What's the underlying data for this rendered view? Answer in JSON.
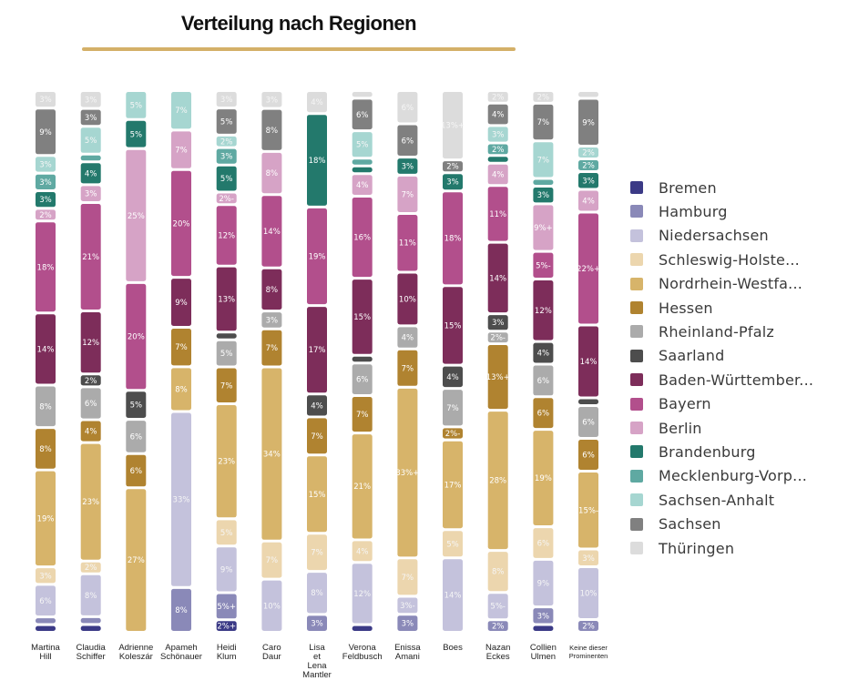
{
  "chart_data": {
    "type": "bar",
    "stacked": true,
    "orientation": "vertical",
    "normalized": true,
    "title": "Verteilung nach Regionen",
    "xlabel": "",
    "ylabel": "",
    "categories": [
      [
        "Martina",
        "Hill"
      ],
      [
        "Claudia",
        "Schiffer"
      ],
      [
        "Adrienne",
        "Koleszár"
      ],
      [
        "Apameh",
        "Schönauer"
      ],
      [
        "Heidi",
        "Klum"
      ],
      [
        "Caro",
        "Daur"
      ],
      [
        "Lisa",
        "et",
        "Lena",
        "Mantler"
      ],
      [
        "Verona",
        "Feldbusch"
      ],
      [
        "Enissa",
        "Amani"
      ],
      [
        "Boes"
      ],
      [
        "Nazan",
        "Eckes"
      ],
      [
        "Collien",
        "Ulmen"
      ],
      [
        "Keine dieser",
        "Prominenten"
      ]
    ],
    "legend_position": "right",
    "grid": false,
    "series": [
      {
        "name": "Bremen",
        "color": "#3b3a86",
        "values": [
          1,
          1,
          0,
          0,
          2,
          0,
          0,
          1,
          0,
          0,
          0,
          1,
          0
        ],
        "labels": [
          "1%",
          "1%",
          "",
          "",
          "2%+",
          "",
          "",
          "1%",
          "",
          "",
          "",
          "1%",
          ""
        ]
      },
      {
        "name": "Hamburg",
        "color": "#8a89b8",
        "values": [
          1,
          1,
          0,
          8,
          5,
          0,
          3,
          0,
          3,
          0,
          2,
          3,
          2
        ],
        "labels": [
          "1%",
          "1%",
          "",
          "8%",
          "5%+",
          "",
          "3%",
          "",
          "3%",
          "",
          "2%",
          "3%",
          "2%"
        ]
      },
      {
        "name": "Niedersachsen",
        "color": "#c4c2dc",
        "values": [
          6,
          8,
          0,
          33,
          9,
          10,
          8,
          12,
          3,
          14,
          5,
          9,
          10
        ],
        "labels": [
          "6%",
          "8%",
          "",
          "33%",
          "9%",
          "10%",
          "8%",
          "12%",
          "3%-",
          "14%",
          "5%-",
          "9%",
          "10%"
        ]
      },
      {
        "name": "Schleswig-Holste...",
        "color": "#ecd6ae",
        "values": [
          3,
          2,
          0,
          0,
          5,
          7,
          7,
          4,
          7,
          5,
          8,
          6,
          3
        ],
        "labels": [
          "3%",
          "2%",
          "",
          "",
          "5%",
          "7%",
          "7%",
          "4%",
          "7%",
          "5%",
          "8%",
          "6%",
          "3%"
        ]
      },
      {
        "name": "Nordrhein-Westfa...",
        "color": "#d7b46a",
        "values": [
          19,
          23,
          27,
          8,
          23,
          34,
          15,
          21,
          33,
          17,
          28,
          19,
          15
        ],
        "labels": [
          "19%",
          "23%",
          "27%",
          "8%",
          "23%",
          "34%",
          "15%",
          "21%",
          "33%+",
          "17%",
          "28%",
          "19%",
          "15%-"
        ]
      },
      {
        "name": "Hessen",
        "color": "#b08330",
        "values": [
          8,
          4,
          6,
          7,
          7,
          7,
          7,
          7,
          7,
          2,
          13,
          6,
          6
        ],
        "labels": [
          "8%",
          "4%",
          "6%",
          "7%",
          "7%",
          "7%",
          "7%",
          "7%",
          "7%",
          "2%-",
          "13%+",
          "6%",
          "6%"
        ]
      },
      {
        "name": "Rheinland-Pfalz",
        "color": "#ababab",
        "values": [
          8,
          6,
          6,
          0,
          5,
          3,
          0,
          6,
          4,
          7,
          2,
          6,
          6
        ],
        "labels": [
          "8%",
          "6%",
          "6%",
          "",
          "5%",
          "3%",
          "",
          "6%",
          "4%",
          "7%",
          "2%-",
          "6%",
          "6%"
        ]
      },
      {
        "name": "Saarland",
        "color": "#4d4d4d",
        "values": [
          0,
          2,
          5,
          0,
          1,
          0,
          4,
          1,
          0,
          4,
          3,
          4,
          1
        ],
        "labels": [
          "",
          "2%",
          "5%",
          "",
          "",
          "",
          "4%",
          "1%",
          "",
          "4%",
          "3%",
          "4%",
          "1%"
        ]
      },
      {
        "name": "Baden-Württember...",
        "color": "#7d2d5a",
        "values": [
          14,
          12,
          0,
          9,
          13,
          8,
          17,
          15,
          10,
          15,
          14,
          12,
          14
        ],
        "labels": [
          "14%",
          "12%",
          "",
          "9%",
          "13%",
          "8%",
          "17%",
          "15%",
          "10%",
          "15%",
          "14%",
          "12%",
          "14%"
        ]
      },
      {
        "name": "Bayern",
        "color": "#b24f8c",
        "values": [
          18,
          21,
          20,
          20,
          12,
          14,
          19,
          16,
          11,
          18,
          11,
          5,
          22
        ],
        "labels": [
          "18%",
          "21%",
          "20%",
          "20%",
          "12%",
          "14%",
          "19%",
          "16%",
          "11%",
          "18%",
          "11%",
          "5%-",
          "22%+"
        ]
      },
      {
        "name": "Berlin",
        "color": "#d6a3c6",
        "values": [
          2,
          3,
          25,
          7,
          2,
          8,
          0,
          4,
          7,
          0,
          4,
          9,
          4
        ],
        "labels": [
          "2%",
          "3%",
          "25%",
          "7%",
          "2%-",
          "8%",
          "",
          "4%",
          "7%",
          "",
          "4%",
          "9%+",
          "4%"
        ]
      },
      {
        "name": "Brandenburg",
        "color": "#23796c",
        "values": [
          3,
          4,
          5,
          0,
          5,
          0,
          18,
          1,
          3,
          3,
          1,
          3,
          3
        ],
        "labels": [
          "3%",
          "4%",
          "5%",
          "",
          "5%",
          "",
          "18%",
          "1%",
          "3%",
          "3%",
          "1%",
          "3%",
          "3%"
        ]
      },
      {
        "name": "Mecklenburg-Vorp...",
        "color": "#5fa9a2",
        "values": [
          3,
          1,
          0,
          0,
          3,
          0,
          0,
          1,
          0,
          0,
          2,
          1,
          2
        ],
        "labels": [
          "3%",
          "",
          "",
          "",
          "3%",
          "",
          "",
          "1%",
          "",
          "",
          "2%",
          "",
          "2%"
        ]
      },
      {
        "name": "Sachsen-Anhalt",
        "color": "#a6d6d1",
        "values": [
          3,
          5,
          5,
          7,
          2,
          0,
          0,
          5,
          0,
          0,
          3,
          7,
          2
        ],
        "labels": [
          "3%",
          "5%",
          "5%",
          "7%",
          "2%",
          "",
          "",
          "5%",
          "",
          "",
          "3%",
          "7%",
          "2%"
        ]
      },
      {
        "name": "Sachsen",
        "color": "#808080",
        "values": [
          9,
          3,
          0,
          0,
          5,
          8,
          0,
          6,
          6,
          2,
          4,
          7,
          9
        ],
        "labels": [
          "9%",
          "3%",
          "",
          "",
          "5%",
          "8%",
          "",
          "6%",
          "6%",
          "2%",
          "4%",
          "7%",
          "9%"
        ]
      },
      {
        "name": "Thüringen",
        "color": "#dcdcdc",
        "values": [
          3,
          3,
          0,
          0,
          3,
          3,
          4,
          1,
          6,
          13,
          2,
          2,
          1
        ],
        "labels": [
          "3%",
          "3%",
          "",
          "",
          "3%",
          "3%",
          "4%",
          "1%",
          "6%",
          "13%+",
          "2%",
          "2%",
          "1%"
        ]
      }
    ]
  }
}
